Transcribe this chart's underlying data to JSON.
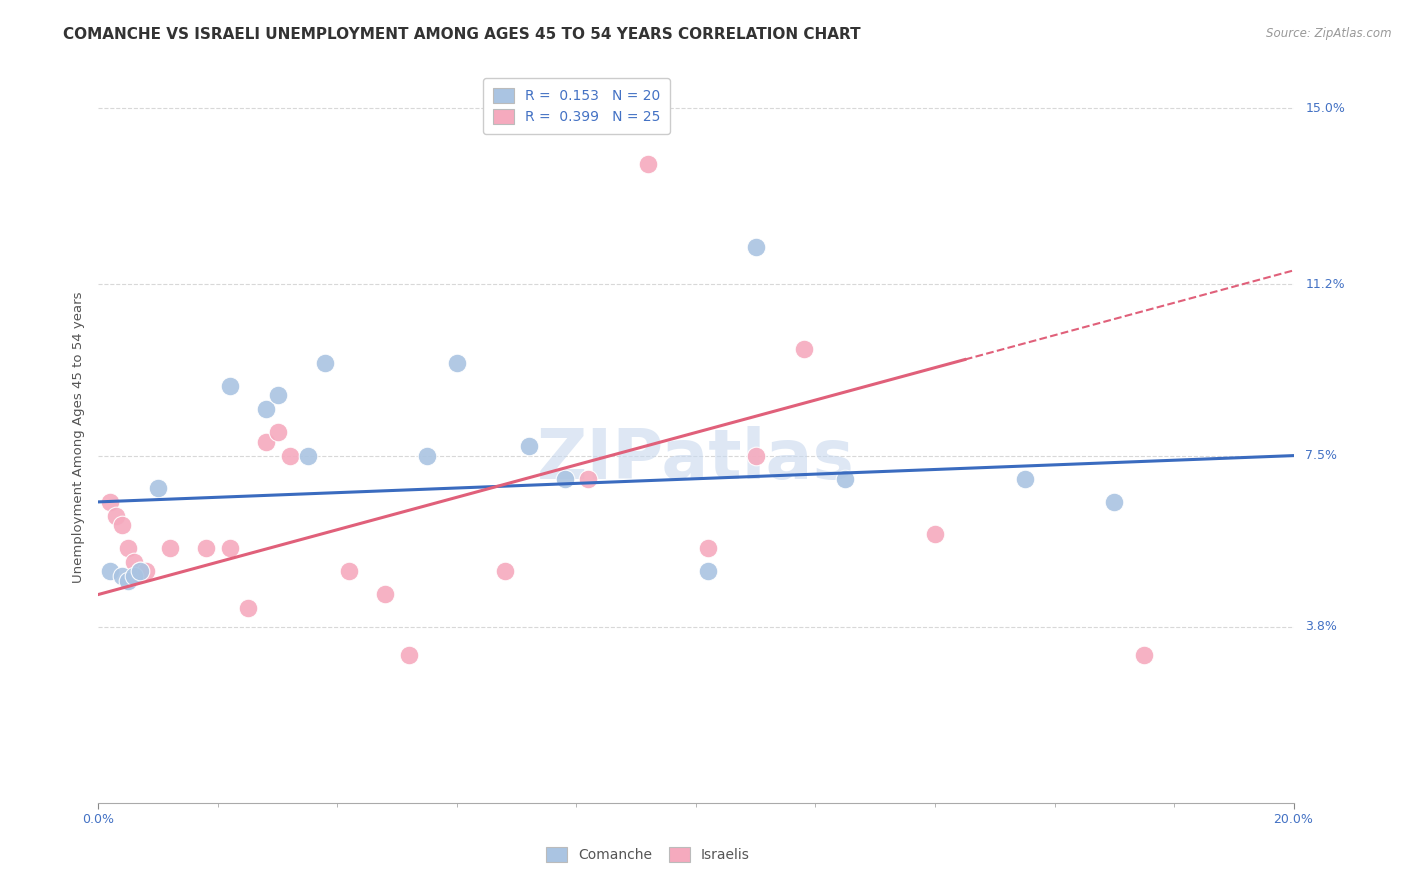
{
  "title": "COMANCHE VS ISRAELI UNEMPLOYMENT AMONG AGES 45 TO 54 YEARS CORRELATION CHART",
  "source": "Source: ZipAtlas.com",
  "ylabel": "Unemployment Among Ages 45 to 54 years",
  "xlim": [
    0,
    20
  ],
  "ylim": [
    0,
    15.8
  ],
  "ytick_labels_right": [
    "15.0%",
    "11.2%",
    "7.5%",
    "3.8%"
  ],
  "ytick_vals_right": [
    15.0,
    11.2,
    7.5,
    3.8
  ],
  "background_color": "#ffffff",
  "grid_color": "#d8d8d8",
  "legend_R1": "R =  0.153",
  "legend_N1": "N = 20",
  "legend_R2": "R =  0.399",
  "legend_N2": "N = 25",
  "comanche_color": "#aac4e2",
  "israeli_color": "#f5aabe",
  "comanche_line_color": "#3a6bbf",
  "israeli_line_color": "#e0607a",
  "comanche_scatter": [
    [
      0.2,
      5.0
    ],
    [
      0.4,
      4.9
    ],
    [
      0.5,
      4.8
    ],
    [
      0.6,
      4.9
    ],
    [
      0.7,
      5.0
    ],
    [
      1.0,
      6.8
    ],
    [
      2.2,
      9.0
    ],
    [
      2.8,
      8.5
    ],
    [
      3.0,
      8.8
    ],
    [
      3.5,
      7.5
    ],
    [
      3.8,
      9.5
    ],
    [
      5.5,
      7.5
    ],
    [
      6.0,
      9.5
    ],
    [
      7.2,
      7.7
    ],
    [
      7.8,
      7.0
    ],
    [
      10.2,
      5.0
    ],
    [
      11.0,
      12.0
    ],
    [
      12.5,
      7.0
    ],
    [
      15.5,
      7.0
    ],
    [
      17.0,
      6.5
    ]
  ],
  "israeli_scatter": [
    [
      0.2,
      6.5
    ],
    [
      0.3,
      6.2
    ],
    [
      0.4,
      6.0
    ],
    [
      0.5,
      5.5
    ],
    [
      0.6,
      5.2
    ],
    [
      0.7,
      5.0
    ],
    [
      0.8,
      5.0
    ],
    [
      1.2,
      5.5
    ],
    [
      1.8,
      5.5
    ],
    [
      2.2,
      5.5
    ],
    [
      2.5,
      4.2
    ],
    [
      2.8,
      7.8
    ],
    [
      3.0,
      8.0
    ],
    [
      3.2,
      7.5
    ],
    [
      4.2,
      5.0
    ],
    [
      4.8,
      4.5
    ],
    [
      5.2,
      3.2
    ],
    [
      6.8,
      5.0
    ],
    [
      8.2,
      7.0
    ],
    [
      9.2,
      13.8
    ],
    [
      10.2,
      5.5
    ],
    [
      11.0,
      7.5
    ],
    [
      11.8,
      9.8
    ],
    [
      14.0,
      5.8
    ],
    [
      17.5,
      3.2
    ]
  ],
  "comanche_line_x0": 0,
  "comanche_line_y0": 6.5,
  "comanche_line_x1": 20,
  "comanche_line_y1": 7.5,
  "israeli_line_x0": 0,
  "israeli_line_y0": 4.5,
  "israeli_line_x1": 20,
  "israeli_line_y1": 11.5,
  "israeli_solid_end": 14.5,
  "title_fontsize": 11,
  "axis_label_fontsize": 9.5,
  "tick_fontsize": 9,
  "legend_fontsize": 10
}
